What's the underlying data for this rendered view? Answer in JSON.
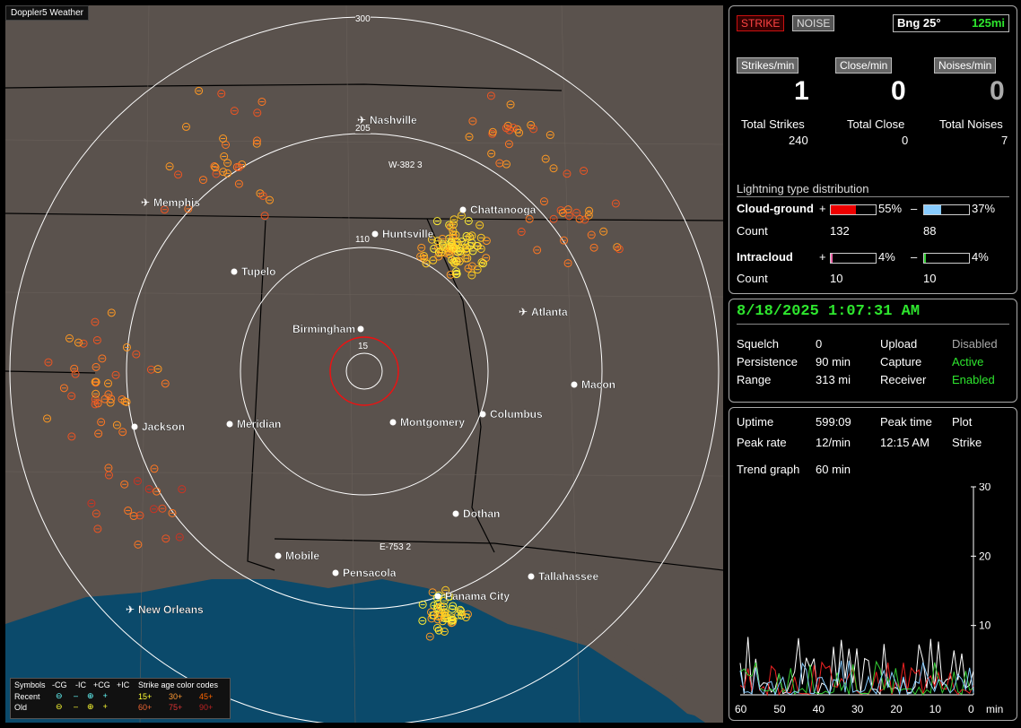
{
  "app": {
    "title": "Doppler5 Weather"
  },
  "map": {
    "rings": [
      "300",
      "205",
      "110",
      "15"
    ],
    "cities": [
      {
        "name": "Nashville",
        "airport": true
      },
      {
        "name": "Memphis",
        "airport": true
      },
      {
        "name": "Chattanooga",
        "airport": false
      },
      {
        "name": "Huntsville",
        "airport": false
      },
      {
        "name": "Tupelo",
        "airport": false
      },
      {
        "name": "Birmingham",
        "airport": false
      },
      {
        "name": "Atlanta",
        "airport": true
      },
      {
        "name": "Macon",
        "airport": false
      },
      {
        "name": "Columbus",
        "airport": false
      },
      {
        "name": "Montgomery",
        "airport": false
      },
      {
        "name": "Meridian",
        "airport": false
      },
      {
        "name": "Jackson",
        "airport": false
      },
      {
        "name": "Dothan",
        "airport": false
      },
      {
        "name": "Mobile",
        "airport": false
      },
      {
        "name": "Pensacola",
        "airport": false
      },
      {
        "name": "Tallahassee",
        "airport": false
      },
      {
        "name": "Panama City",
        "airport": false
      },
      {
        "name": "New Orleans",
        "airport": true
      }
    ],
    "cell_labels": [
      "W-382 3",
      "E-753 2"
    ],
    "legend": {
      "header": [
        "Symbols",
        "-CG",
        "-IC",
        "+CG",
        "+IC",
        "Strike age color codes"
      ],
      "recent_label": "Recent",
      "old_label": "Old",
      "recent_ages": [
        "15+",
        "30+",
        "45+"
      ],
      "old_ages": [
        "60+",
        "75+",
        "90+"
      ]
    }
  },
  "header": {
    "strike_btn": "STRIKE",
    "noise_btn": "NOISE",
    "bearing": "Bng 25°",
    "range": "125mi"
  },
  "stats": {
    "rate_labels": [
      "Strikes/min",
      "Close/min",
      "Noises/min"
    ],
    "rate_values": [
      "1",
      "0",
      "0"
    ],
    "total_labels": [
      "Total Strikes",
      "Total Close",
      "Total Noises"
    ],
    "total_values": [
      "240",
      "0",
      "7"
    ]
  },
  "distribution": {
    "title": "Lightning type distribution",
    "cg_label": "Cloud-ground",
    "cg_pos_pct": "55%",
    "cg_neg_pct": "37%",
    "cg_pos_fill": 0.55,
    "cg_neg_fill": 0.37,
    "count_label": "Count",
    "cg_pos_count": "132",
    "cg_neg_count": "88",
    "ic_label": "Intracloud",
    "ic_pos_pct": "4%",
    "ic_neg_pct": "4%",
    "ic_pos_fill": 0.04,
    "ic_neg_fill": 0.04,
    "ic_pos_count": "10",
    "ic_neg_count": "10",
    "plus": "+",
    "minus": "–"
  },
  "status": {
    "datetime": "8/18/2025 1:07:31 AM",
    "squelch_label": "Squelch",
    "squelch": "0",
    "persistence_label": "Persistence",
    "persistence": "90 min",
    "range_label": "Range",
    "range": "313 mi",
    "upload_label": "Upload",
    "upload": "Disabled",
    "capture_label": "Capture",
    "capture": "Active",
    "receiver_label": "Receiver",
    "receiver": "Enabled"
  },
  "trend": {
    "uptime_label": "Uptime",
    "uptime": "599:09",
    "peak_time_label": "Peak time",
    "plot_label": "Plot",
    "peak_rate_label": "Peak rate",
    "peak_rate": "12/min",
    "peak_time": "12:15 AM",
    "plot": "Strike",
    "trend_label": "Trend graph",
    "trend_value": "60 min",
    "y_ticks": [
      "30",
      "20",
      "10"
    ],
    "x_ticks": [
      "60",
      "50",
      "40",
      "30",
      "20",
      "10",
      "0"
    ],
    "x_unit": "min"
  },
  "colors": {
    "strike_btn": "#cc1111",
    "accent_green": "#2ee62e",
    "map_land": "#5a524d",
    "water": "#0b4a6b"
  }
}
